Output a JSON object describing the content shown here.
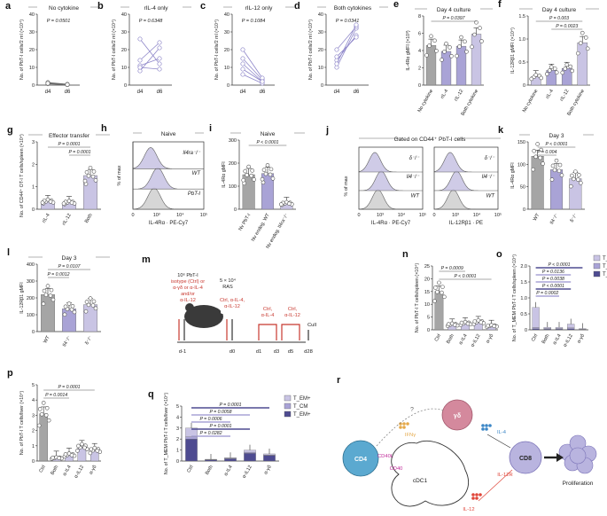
{
  "colors": {
    "lavender": "#c9c4e4",
    "light_purple": "#a9a3d6",
    "purple": "#8e86c9",
    "dark_navy": "#4e4b91",
    "gray": "#a5a5a5",
    "dark_gray": "#6b6b6b",
    "title_bar": "#9a9a9a",
    "red": "#c8382f",
    "cd4_teal": "#5ba9d0",
    "gd_pink": "#d4899d",
    "cd8_lavender": "#b9b4df",
    "ifng_orange": "#e5a94a",
    "il4_blue": "#3b86c6",
    "cd40_magenta": "#c02c9a",
    "il12_red": "#e0463a"
  },
  "icons": [
    "mouse-icon",
    "cell-icon",
    "dendritic-cell-icon",
    "arrow-icon"
  ],
  "chart_data": [
    {
      "panel": "a",
      "type": "scatter",
      "title": "No cytokine",
      "ylabel": "No. of PbT-I cells/2 ml (×10⁴)",
      "yticks": [
        "0",
        "10",
        "20",
        "30",
        "40"
      ],
      "ylim": [
        0,
        40
      ],
      "categories": [
        "d4",
        "d6"
      ],
      "p_value": "P = 0.0501",
      "pairs": [
        [
          1.2,
          0.4
        ],
        [
          0.9,
          0.3
        ],
        [
          1.5,
          0.5
        ],
        [
          0.7,
          0.2
        ],
        [
          1.0,
          0.3
        ]
      ]
    },
    {
      "panel": "b",
      "type": "scatter",
      "title": "rIL-4 only",
      "ylabel": "No. of PbT-I cells/2 ml (×10⁴)",
      "yticks": [
        "0",
        "10",
        "20",
        "30",
        "40"
      ],
      "ylim": [
        0,
        40
      ],
      "categories": [
        "d4",
        "d6"
      ],
      "p_value": "P = 0.6348",
      "pairs": [
        [
          8,
          21
        ],
        [
          11,
          15
        ],
        [
          26,
          12
        ],
        [
          14,
          24
        ],
        [
          10,
          9
        ]
      ]
    },
    {
      "panel": "c",
      "type": "scatter",
      "title": "rIL-12 only",
      "ylabel": "No. of PbT-I cells/2 ml (×10⁴)",
      "yticks": [
        "0",
        "10",
        "20",
        "30",
        "40"
      ],
      "ylim": [
        0,
        40
      ],
      "categories": [
        "d4",
        "d6"
      ],
      "p_value": "P = 0.1084",
      "pairs": [
        [
          12,
          2
        ],
        [
          15,
          3
        ],
        [
          20,
          4
        ],
        [
          6,
          1
        ],
        [
          9,
          2
        ]
      ]
    },
    {
      "panel": "d",
      "type": "scatter",
      "title": "Both cytokines",
      "ylabel": "No. of PbT-I cells/2 ml (×10⁴)",
      "yticks": [
        "0",
        "10",
        "20",
        "30",
        "40"
      ],
      "ylim": [
        0,
        40
      ],
      "categories": [
        "d4",
        "d6"
      ],
      "p_value": "P = 0.0341",
      "pairs": [
        [
          14,
          28
        ],
        [
          10,
          32
        ],
        [
          20,
          33
        ],
        [
          16,
          27
        ],
        [
          12,
          34
        ]
      ]
    },
    {
      "panel": "e",
      "type": "bar",
      "title": "Day 4 culture",
      "ylabel": "IL-4Rα gMFI (×10³)",
      "yticks": [
        "0",
        "2",
        "4",
        "6",
        "8"
      ],
      "ylim": [
        0,
        8
      ],
      "categories": [
        "No cytokine",
        "rIL-4",
        "rIL-12",
        "Both cytokine"
      ],
      "values": [
        4.6,
        3.9,
        4.5,
        5.9
      ],
      "brackets": [
        {
          "from": 0,
          "to": 3,
          "label": "P = 0.0397"
        }
      ]
    },
    {
      "panel": "f",
      "type": "bar",
      "title": "Day 4 culture",
      "ylabel": "IL-12Rβ1 gMFI (×10⁴)",
      "yticks": [
        "0",
        "0.5",
        "1.0",
        "1.5"
      ],
      "ylim": [
        0,
        1.5
      ],
      "categories": [
        "No cytokine",
        "rIL-4",
        "rIL-12",
        "Both cytokine"
      ],
      "values": [
        0.18,
        0.32,
        0.36,
        0.92
      ],
      "brackets": [
        {
          "from": 0,
          "to": 3,
          "label": "P = 0.003"
        },
        {
          "from": 1,
          "to": 3,
          "label": "P = 0.0023"
        }
      ]
    },
    {
      "panel": "g",
      "type": "bar",
      "title": "Effector transfer",
      "ylabel": "No. of CD44⁺ OT-I T cells/spleen (×10⁴)",
      "yticks": [
        "0",
        "1",
        "2",
        "3"
      ],
      "ylim": [
        0,
        3
      ],
      "categories": [
        "rIL-4",
        "rIL-12",
        "Both"
      ],
      "values": [
        0.35,
        0.3,
        1.5
      ],
      "brackets": [
        {
          "from": 0,
          "to": 2,
          "label": "P = 0.0001"
        },
        {
          "from": 1,
          "to": 2,
          "label": "P = 0.0001"
        }
      ]
    },
    {
      "panel": "h",
      "type": "histogram",
      "title": "Naive",
      "xlabel": "IL-4Rα · PE-Cy7",
      "ylabel": "% of max",
      "xticks": [
        "0",
        "10³",
        "10⁴",
        "10⁵"
      ],
      "series": [
        "Il4ra⁻/⁻",
        "WT",
        "PbT-I"
      ]
    },
    {
      "panel": "i",
      "type": "bar",
      "title": "Naive",
      "ylabel": "IL-4Rα gMFI",
      "yticks": [
        "0",
        "100",
        "200",
        "300"
      ],
      "ylim": [
        0,
        300
      ],
      "categories": [
        "Nv PbT-I",
        "Nv endog. WT",
        "Nv endog. Il4ra⁻/⁻"
      ],
      "values": [
        150,
        155,
        25
      ],
      "brackets": [
        {
          "from": 0,
          "to": 2,
          "label": "P < 0.0001"
        }
      ]
    },
    {
      "panel": "j",
      "type": "histogram",
      "title": "Gated on CD44⁺ PbT-I cells",
      "xlabel": [
        "IL-4Rα · PE-Cy7",
        "IL-12Rβ1 · PE"
      ],
      "ylabel": "% of max",
      "xticks": [
        "0",
        "10³",
        "10⁴",
        "10⁵"
      ],
      "series": [
        "δ⁻/⁻",
        "Il4⁻/⁻",
        "WT"
      ]
    },
    {
      "panel": "k",
      "type": "bar",
      "title": "Day 3",
      "ylabel": "IL-4Rα gMFI",
      "yticks": [
        "0",
        "50",
        "100",
        "150"
      ],
      "ylim": [
        0,
        150
      ],
      "categories": [
        "WT",
        "Il4⁻/⁻",
        "δ⁻/⁻"
      ],
      "values": [
        118,
        88,
        68
      ],
      "brackets": [
        {
          "from": 0,
          "to": 2,
          "label": "P < 0.0001"
        },
        {
          "from": 0,
          "to": 1,
          "label": "P = 0.004"
        }
      ]
    },
    {
      "panel": "l",
      "type": "bar",
      "title": "Day 3",
      "ylabel": "IL-12Rβ1 gMFI",
      "yticks": [
        "0",
        "100",
        "200",
        "300",
        "400"
      ],
      "ylim": [
        0,
        400
      ],
      "categories": [
        "WT",
        "Il4⁻/⁻",
        "δ⁻/⁻"
      ],
      "values": [
        220,
        135,
        160
      ],
      "brackets": [
        {
          "from": 0,
          "to": 2,
          "label": "P = 0.0107"
        },
        {
          "from": 0,
          "to": 1,
          "label": "P = 0.0012"
        }
      ]
    },
    {
      "panel": "m",
      "type": "diagram",
      "treatment": [
        "10⁶ PbT-I",
        "isotype (Ctrl) or",
        "α-γδ or α-IL-4",
        "and/or",
        "α-IL-12"
      ],
      "ras": [
        "5 × 10⁴",
        "RAS"
      ],
      "ctrl_d0": [
        "Ctrl, α-IL-4,",
        "α-IL-12"
      ],
      "ctrl_d1": [
        "Ctrl,",
        "α-IL-4"
      ],
      "ctrl_d5": [
        "Ctrl,",
        "α-IL-12"
      ],
      "days": [
        "d-1",
        "d0",
        "d1",
        "d3",
        "d5",
        "d28"
      ],
      "cull": "Cull"
    },
    {
      "panel": "n",
      "type": "bar",
      "ylabel": "No. of PbT-I T cells/spleen (×10⁴)",
      "yticks": [
        "0",
        "5",
        "10",
        "15",
        "20",
        "25"
      ],
      "ylim": [
        0,
        25
      ],
      "categories": [
        "Ctrl",
        "Both",
        "α-IL4",
        "α-IL12",
        "α-γδ"
      ],
      "values": [
        15,
        2,
        2.5,
        3,
        1.5
      ],
      "brackets": [
        {
          "from": 0,
          "to": 2,
          "label": "P = 0.0009"
        },
        {
          "from": 0,
          "to": 4,
          "label": "P < 0.0001"
        }
      ]
    },
    {
      "panel": "o",
      "type": "stacked-bar",
      "ylabel": "No. of T_MEM PbT-I T cells/spleen (×10⁴)",
      "yticks": [
        "0",
        "0.5",
        "1.0",
        "1.5",
        "2.0"
      ],
      "ylim": [
        0,
        2.0
      ],
      "categories": [
        "Ctrl",
        "Both",
        "α-IL4",
        "α-IL12",
        "α-γδ"
      ],
      "series": [
        {
          "name": "T_EM+",
          "values": [
            0.03,
            0.02,
            0.02,
            0.03,
            0.01
          ]
        },
        {
          "name": "T_CM",
          "values": [
            0.04,
            0.02,
            0.02,
            0.03,
            0.01
          ]
        },
        {
          "name": "T_EM+",
          "values": [
            0.63,
            0.04,
            0.04,
            0.12,
            0.02
          ]
        }
      ],
      "legend": [
        "T_EM+",
        "T_CM",
        "T_EM+"
      ],
      "brackets": [
        {
          "from": 0,
          "to": 4,
          "label": "P < 0.0001"
        },
        {
          "from": 0,
          "to": 3,
          "label": "P = 0.0136"
        },
        {
          "from": 0,
          "to": 3,
          "label": "P = 0.0038"
        },
        {
          "from": 0,
          "to": 3,
          "label": "P < 0.0001"
        },
        {
          "from": 0,
          "to": 2,
          "label": "P = 0.0002"
        }
      ]
    },
    {
      "panel": "p",
      "type": "bar",
      "ylabel": "No. of PbT-I T cells/liver (×10⁴)",
      "yticks": [
        "0",
        "1",
        "2",
        "3",
        "4",
        "5"
      ],
      "ylim": [
        0,
        5
      ],
      "categories": [
        "Ctrl",
        "Both",
        "α-IL4",
        "α-IL12",
        "α-γδ"
      ],
      "values": [
        3.1,
        0.2,
        0.4,
        0.9,
        0.7
      ],
      "brackets": [
        {
          "from": 0,
          "to": 4,
          "label": "P = 0.0001"
        },
        {
          "from": 0,
          "to": 2,
          "label": "P = 0.0014"
        }
      ]
    },
    {
      "panel": "q",
      "type": "stacked-bar",
      "ylabel": "No. of T_MEM PbT-I T cells/liver (×10⁴)",
      "yticks": [
        "0",
        "1",
        "2",
        "3",
        "4",
        "5"
      ],
      "ylim": [
        0,
        5
      ],
      "categories": [
        "Ctrl",
        "Both",
        "α-IL4",
        "α-IL12",
        "α-γδ"
      ],
      "series": [
        {
          "name": "T_EM+",
          "values": [
            2.0,
            0.1,
            0.2,
            0.7,
            0.5
          ]
        },
        {
          "name": "T_CM",
          "values": [
            0.2,
            0.03,
            0.05,
            0.1,
            0.05
          ]
        },
        {
          "name": "T_EM+",
          "values": [
            0.8,
            0.03,
            0.05,
            0.2,
            0.1
          ]
        }
      ],
      "legend": [
        "T_EM+",
        "T_CM",
        "T_EM+"
      ],
      "brackets": [
        {
          "from": 0,
          "to": 4,
          "label": "P = 0.0001"
        },
        {
          "from": 0,
          "to": 3,
          "label": "P = 0.0058"
        },
        {
          "from": 0,
          "to": 2,
          "label": "P = 0.0006"
        },
        {
          "from": 0,
          "to": 3,
          "label": "P = 0.0001"
        },
        {
          "from": 0,
          "to": 2,
          "label": "P = 0.0282"
        }
      ]
    },
    {
      "panel": "r",
      "type": "diagram",
      "nodes": [
        "CD4",
        "γδ",
        "CD8",
        "cDC1",
        "Proliferation"
      ],
      "labels": [
        "IFNγ",
        "IL-4",
        "CD40L",
        "CD40",
        "IL-12",
        "IL-12R",
        "?"
      ]
    }
  ]
}
